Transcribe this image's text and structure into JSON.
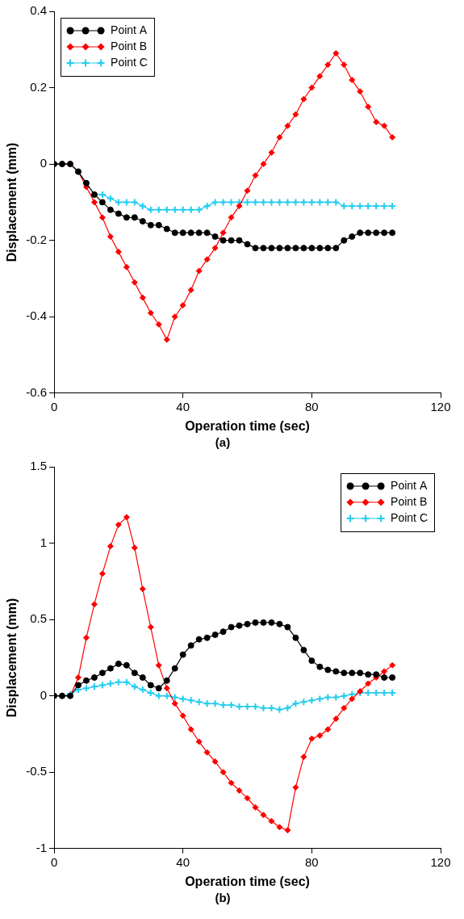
{
  "chart_data": [
    {
      "type": "line",
      "title": "(a)",
      "x_label": "Operation time (sec)",
      "y_label": "Displacement (mm)",
      "x": [
        0,
        2.5,
        5,
        7.5,
        10,
        12.5,
        15,
        17.5,
        20,
        22.5,
        25,
        27.5,
        30,
        32.5,
        35,
        37.5,
        40,
        42.5,
        45,
        47.5,
        50,
        52.5,
        55,
        57.5,
        60,
        62.5,
        65,
        67.5,
        70,
        72.5,
        75,
        77.5,
        80,
        82.5,
        85,
        87.5,
        90,
        92.5,
        95,
        97.5,
        100,
        102.5,
        105
      ],
      "xlim": [
        0,
        120
      ],
      "xticks": [
        0,
        40,
        80,
        120
      ],
      "ylim": [
        -0.6,
        0.4
      ],
      "yticks": [
        -0.6,
        -0.4,
        -0.2,
        0,
        0.2,
        0.4
      ],
      "grid": false,
      "legend": "top-left",
      "series": [
        {
          "name": "Point A",
          "color": "#000000",
          "marker": "circle",
          "values": [
            0,
            0,
            0,
            -0.02,
            -0.05,
            -0.08,
            -0.1,
            -0.12,
            -0.13,
            -0.14,
            -0.14,
            -0.15,
            -0.16,
            -0.16,
            -0.17,
            -0.18,
            -0.18,
            -0.18,
            -0.18,
            -0.18,
            -0.19,
            -0.2,
            -0.2,
            -0.2,
            -0.21,
            -0.22,
            -0.22,
            -0.22,
            -0.22,
            -0.22,
            -0.22,
            -0.22,
            -0.22,
            -0.22,
            -0.22,
            -0.22,
            -0.2,
            -0.19,
            -0.18,
            -0.18,
            -0.18,
            -0.18,
            -0.18
          ]
        },
        {
          "name": "Point B",
          "color": "#ff0000",
          "marker": "diamond",
          "values": [
            0,
            0,
            0,
            -0.02,
            -0.06,
            -0.1,
            -0.14,
            -0.19,
            -0.23,
            -0.27,
            -0.31,
            -0.35,
            -0.39,
            -0.42,
            -0.46,
            -0.4,
            -0.37,
            -0.33,
            -0.28,
            -0.25,
            -0.22,
            -0.18,
            -0.14,
            -0.11,
            -0.07,
            -0.03,
            0,
            0.03,
            0.07,
            0.1,
            0.13,
            0.17,
            0.2,
            0.23,
            0.26,
            0.29,
            0.26,
            0.22,
            0.19,
            0.15,
            0.11,
            0.1,
            0.07
          ]
        },
        {
          "name": "Point C",
          "color": "#22ccee",
          "marker": "plus",
          "values": [
            0,
            0,
            0,
            -0.02,
            -0.05,
            -0.08,
            -0.08,
            -0.09,
            -0.1,
            -0.1,
            -0.1,
            -0.11,
            -0.12,
            -0.12,
            -0.12,
            -0.12,
            -0.12,
            -0.12,
            -0.12,
            -0.11,
            -0.1,
            -0.1,
            -0.1,
            -0.1,
            -0.1,
            -0.1,
            -0.1,
            -0.1,
            -0.1,
            -0.1,
            -0.1,
            -0.1,
            -0.1,
            -0.1,
            -0.1,
            -0.1,
            -0.11,
            -0.11,
            -0.11,
            -0.11,
            -0.11,
            -0.11,
            -0.11
          ]
        }
      ]
    },
    {
      "type": "line",
      "title": "(b)",
      "x_label": "Operation time (sec)",
      "y_label": "Displacement (mm)",
      "x": [
        0,
        2.5,
        5,
        7.5,
        10,
        12.5,
        15,
        17.5,
        20,
        22.5,
        25,
        27.5,
        30,
        32.5,
        35,
        37.5,
        40,
        42.5,
        45,
        47.5,
        50,
        52.5,
        55,
        57.5,
        60,
        62.5,
        65,
        67.5,
        70,
        72.5,
        75,
        77.5,
        80,
        82.5,
        85,
        87.5,
        90,
        92.5,
        95,
        97.5,
        100,
        102.5,
        105
      ],
      "xlim": [
        0,
        120
      ],
      "xticks": [
        0,
        40,
        80,
        120
      ],
      "ylim": [
        -1,
        1.5
      ],
      "yticks": [
        -1,
        -0.5,
        0,
        0.5,
        1,
        1.5
      ],
      "grid": false,
      "legend": "top-right",
      "series": [
        {
          "name": "Point A",
          "color": "#000000",
          "marker": "circle",
          "values": [
            0,
            0,
            0,
            0.07,
            0.1,
            0.12,
            0.15,
            0.18,
            0.21,
            0.2,
            0.15,
            0.12,
            0.07,
            0.05,
            0.1,
            0.18,
            0.27,
            0.33,
            0.37,
            0.38,
            0.4,
            0.42,
            0.45,
            0.46,
            0.47,
            0.48,
            0.48,
            0.48,
            0.47,
            0.45,
            0.38,
            0.3,
            0.23,
            0.19,
            0.17,
            0.16,
            0.15,
            0.15,
            0.15,
            0.14,
            0.14,
            0.12,
            0.12
          ]
        },
        {
          "name": "Point B",
          "color": "#ff0000",
          "marker": "diamond",
          "values": [
            0,
            0,
            0,
            0.12,
            0.38,
            0.6,
            0.8,
            0.98,
            1.12,
            1.17,
            0.97,
            0.7,
            0.45,
            0.2,
            0.05,
            -0.05,
            -0.13,
            -0.22,
            -0.3,
            -0.37,
            -0.43,
            -0.5,
            -0.57,
            -0.62,
            -0.67,
            -0.73,
            -0.78,
            -0.82,
            -0.86,
            -0.88,
            -0.6,
            -0.4,
            -0.28,
            -0.26,
            -0.22,
            -0.15,
            -0.08,
            -0.02,
            0.03,
            0.08,
            0.12,
            0.16,
            0.2
          ]
        },
        {
          "name": "Point C",
          "color": "#22ccee",
          "marker": "plus",
          "values": [
            0,
            0,
            0.01,
            0.04,
            0.05,
            0.06,
            0.07,
            0.08,
            0.09,
            0.09,
            0.06,
            0.04,
            0.02,
            0,
            0,
            -0.01,
            -0.02,
            -0.03,
            -0.04,
            -0.05,
            -0.05,
            -0.06,
            -0.06,
            -0.07,
            -0.07,
            -0.07,
            -0.08,
            -0.08,
            -0.09,
            -0.08,
            -0.05,
            -0.04,
            -0.03,
            -0.02,
            -0.01,
            -0.01,
            0,
            0.01,
            0.02,
            0.02,
            0.02,
            0.02,
            0.02
          ]
        }
      ]
    }
  ]
}
